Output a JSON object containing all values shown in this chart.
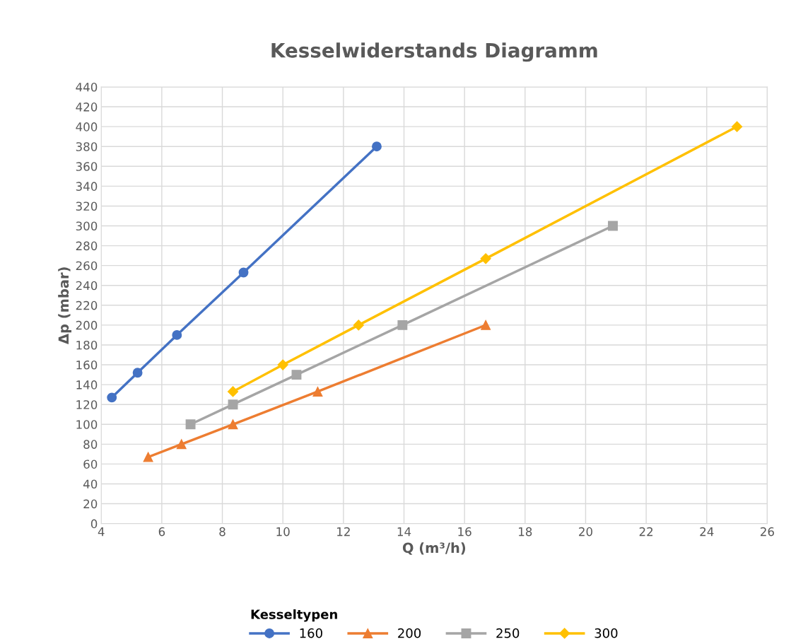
{
  "chart_data": {
    "type": "line",
    "title": "Kesselwiderstands Diagramm",
    "xlabel": "Q (m³/h)",
    "ylabel": "Δp (mbar)",
    "legend_title": "Kesseltypen",
    "series": [
      {
        "name": "160",
        "color": "#4472c4",
        "marker": "circle",
        "x": [
          4.35,
          5.2,
          6.5,
          8.7,
          13.1
        ],
        "values": [
          127,
          152,
          190,
          253,
          380
        ]
      },
      {
        "name": "200",
        "color": "#ed7d31",
        "marker": "triangle",
        "x": [
          5.55,
          6.65,
          8.35,
          11.15,
          16.7
        ],
        "values": [
          67,
          80,
          100,
          133,
          200
        ]
      },
      {
        "name": "250",
        "color": "#a5a5a5",
        "marker": "square",
        "x": [
          6.95,
          8.35,
          10.45,
          13.95,
          20.9
        ],
        "values": [
          100,
          120,
          150,
          200,
          300
        ]
      },
      {
        "name": "300",
        "color": "#ffc000",
        "marker": "diamond",
        "x": [
          8.35,
          10.0,
          12.5,
          16.7,
          25.0
        ],
        "values": [
          133,
          160,
          200,
          267,
          400
        ]
      }
    ],
    "xlim": [
      4,
      26
    ],
    "xticks": [
      4,
      6,
      8,
      10,
      12,
      14,
      16,
      18,
      20,
      22,
      24,
      26
    ],
    "ylim": [
      0,
      440
    ],
    "yticks": [
      0,
      20,
      40,
      60,
      80,
      100,
      120,
      140,
      160,
      180,
      200,
      220,
      240,
      260,
      280,
      300,
      320,
      340,
      360,
      380,
      400,
      420,
      440
    ],
    "grid": true,
    "legend": "bottom",
    "line_style": "solid"
  }
}
